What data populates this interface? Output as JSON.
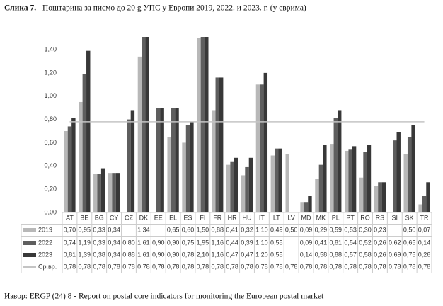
{
  "chart_data": {
    "type": "bar",
    "figure_label": "Слика 7.",
    "title": "Поштарина за писмо до 20 g УПС у Европи 2019, 2022. и 2023. г. (у еврима)",
    "source": "Извор: ERGP (24) 8 - Report on postal core indicators for monitoring the European postal market",
    "categories": [
      "AT",
      "BE",
      "BG",
      "CY",
      "CZ",
      "DK",
      "EE",
      "EL",
      "ES",
      "FI",
      "FR",
      "HR",
      "HU",
      "IT",
      "LT",
      "LV",
      "MD",
      "MK",
      "PL",
      "PT",
      "RO",
      "RS",
      "SI",
      "SK",
      "TR"
    ],
    "ylim": [
      0,
      1.5
    ],
    "yticks": [
      {
        "value": 0,
        "label": "0,00"
      },
      {
        "value": 0.2,
        "label": "0,20"
      },
      {
        "value": 0.4,
        "label": "0,40"
      },
      {
        "value": 0.6,
        "label": "0,60"
      },
      {
        "value": 0.8,
        "label": "0,80"
      },
      {
        "value": 1.0,
        "label": "1,00"
      },
      {
        "value": 1.2,
        "label": "1,20"
      },
      {
        "value": 1.4,
        "label": "1,40"
      }
    ],
    "grid": false,
    "series": [
      {
        "name": "2019",
        "type": "bar",
        "color": "#b8b8b8",
        "values": [
          0.7,
          0.95,
          0.33,
          0.34,
          null,
          1.34,
          null,
          0.65,
          0.6,
          1.5,
          0.88,
          0.41,
          0.32,
          1.1,
          0.49,
          0.5,
          0.09,
          0.29,
          0.59,
          0.53,
          0.3,
          0.23,
          null,
          0.5,
          0.07
        ],
        "value_labels": [
          "0,70",
          "0,95",
          "0,33",
          "0,34",
          null,
          "1,34",
          null,
          "0,65",
          "0,60",
          "1,50",
          "0,88",
          "0,41",
          "0,32",
          "1,10",
          "0,49",
          "0,50",
          "0,09",
          "0,29",
          "0,59",
          "0,53",
          "0,30",
          "0,23",
          null,
          "0,50",
          "0,07"
        ]
      },
      {
        "name": "2022",
        "type": "bar",
        "color": "#5e5e5e",
        "values": [
          0.74,
          1.19,
          0.33,
          0.34,
          0.8,
          1.61,
          0.9,
          0.9,
          0.75,
          1.95,
          1.16,
          0.44,
          0.39,
          1.1,
          0.55,
          null,
          0.09,
          0.41,
          0.81,
          0.54,
          0.52,
          0.26,
          0.62,
          0.65,
          0.14
        ],
        "value_labels": [
          "0,74",
          "1,19",
          "0,33",
          "0,34",
          "0,80",
          "1,61",
          "0,90",
          "0,90",
          "0,75",
          "1,95",
          "1,16",
          "0,44",
          "0,39",
          "1,10",
          "0,55",
          null,
          "0,09",
          "0,41",
          "0,81",
          "0,54",
          "0,52",
          "0,26",
          "0,62",
          "0,65",
          "0,14"
        ]
      },
      {
        "name": "2023",
        "type": "bar",
        "color": "#383838",
        "values": [
          0.81,
          1.39,
          0.38,
          0.34,
          0.88,
          1.61,
          0.9,
          0.9,
          0.78,
          2.1,
          1.16,
          0.47,
          0.47,
          1.2,
          0.55,
          null,
          0.14,
          0.58,
          0.88,
          0.57,
          0.58,
          0.26,
          0.69,
          0.75,
          0.26
        ],
        "value_labels": [
          "0,81",
          "1,39",
          "0,38",
          "0,34",
          "0,88",
          "1,61",
          "0,90",
          "0,90",
          "0,78",
          "2,10",
          "1,16",
          "0,47",
          "0,47",
          "1,20",
          "0,55",
          null,
          "0,14",
          "0,58",
          "0,88",
          "0,57",
          "0,58",
          "0,26",
          "0,69",
          "0,75",
          "0,26"
        ]
      },
      {
        "name": "Ср.вр.",
        "type": "line",
        "color": "#c4c4c4",
        "values": [
          0.78,
          0.78,
          0.78,
          0.78,
          0.78,
          0.78,
          0.78,
          0.78,
          0.78,
          0.78,
          0.78,
          0.78,
          0.78,
          0.78,
          0.78,
          0.78,
          0.78,
          0.78,
          0.78,
          0.78,
          0.78,
          0.78,
          0.78,
          0.78,
          0.78
        ],
        "value_labels": [
          "0,78",
          "0,78",
          "0,78",
          "0,78",
          "0,78",
          "0,78",
          "0,78",
          "0,78",
          "0,78",
          "0,78",
          "0,78",
          "0,78",
          "0,78",
          "0,78",
          "0,78",
          "0,78",
          "0,78",
          "0,78",
          "0,78",
          "0,78",
          "0,78",
          "0,78",
          "0,78",
          "0,78",
          "0,78"
        ]
      }
    ]
  }
}
